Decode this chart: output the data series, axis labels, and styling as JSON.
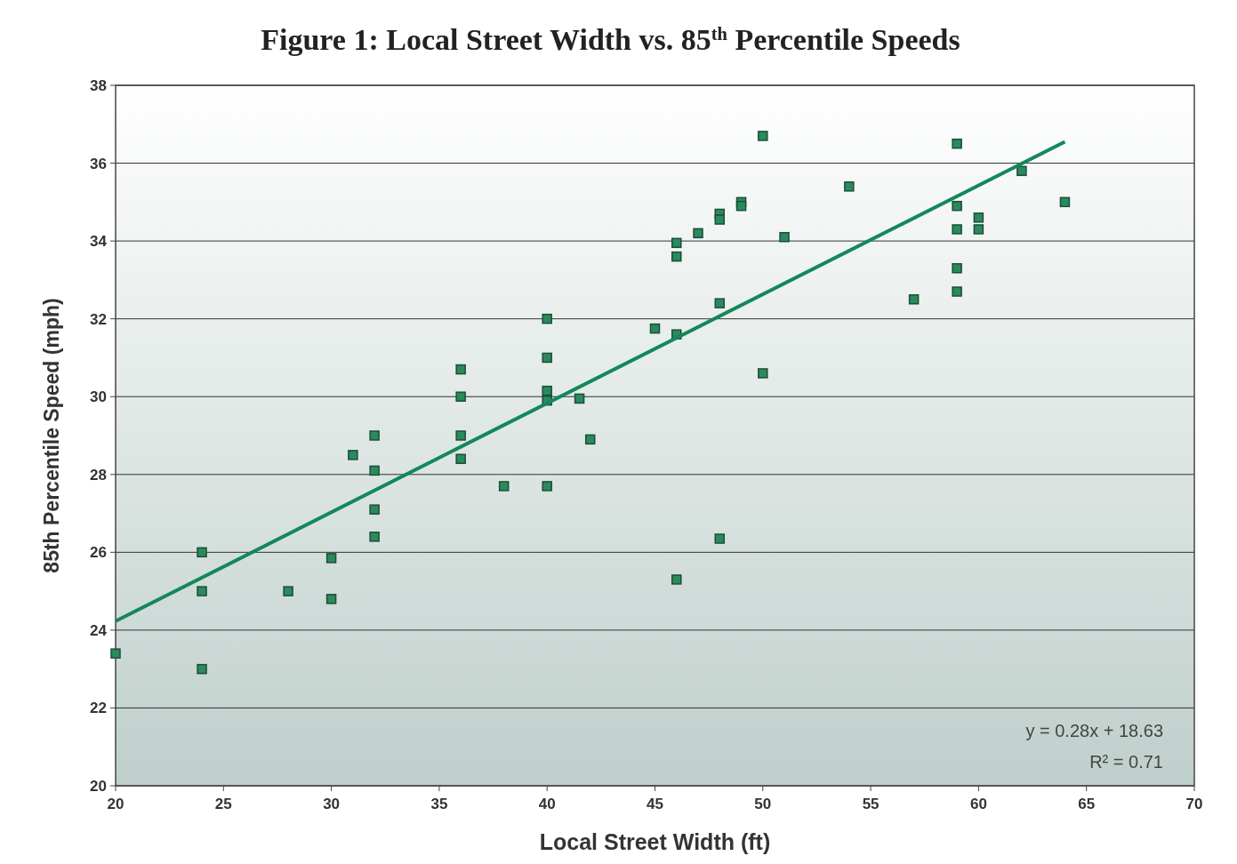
{
  "chart_data": {
    "type": "scatter",
    "title": "Figure 1: Local Street Width vs. 85$^{th}$ Percentile Speeds",
    "xlabel": "Local Street Width (ft)",
    "ylabel": "85th Percentile Speed (mph)",
    "xlim": [
      20,
      70
    ],
    "xticks": [
      20,
      25,
      30,
      35,
      40,
      45,
      50,
      55,
      60,
      65,
      70
    ],
    "ylim": [
      20,
      38
    ],
    "yticks": [
      20,
      22,
      24,
      26,
      28,
      30,
      32,
      34,
      36,
      38
    ],
    "grid": "y",
    "marker": "square",
    "annotations": [
      "y = 0.28x + 18.63",
      "R² = 0.71"
    ],
    "series": [
      {
        "color": "#2a8a5c",
        "x": [
          20,
          24,
          24,
          24,
          28,
          30,
          30,
          31,
          32,
          32,
          32,
          32,
          36,
          36,
          36,
          36,
          38,
          40,
          40,
          40,
          40,
          40,
          41.5,
          42,
          45,
          46,
          46,
          46,
          46,
          47,
          48,
          48,
          48,
          48,
          49,
          49,
          50,
          50,
          51,
          54,
          57,
          59,
          59,
          59,
          59,
          59,
          60,
          60,
          62,
          64
        ],
        "values": [
          23.4,
          26,
          25,
          23,
          25,
          25.85,
          24.8,
          28.5,
          29,
          28.1,
          27.1,
          26.4,
          30.7,
          30,
          29,
          28.4,
          27.7,
          32,
          31,
          30.15,
          29.9,
          27.7,
          29.95,
          28.9,
          31.75,
          33.95,
          33.6,
          31.6,
          25.3,
          34.2,
          34.7,
          34.55,
          32.4,
          26.35,
          35,
          34.9,
          36.7,
          30.6,
          34.1,
          35.4,
          32.5,
          36.5,
          34.9,
          34.3,
          33.3,
          32.7,
          34.6,
          34.3,
          35.8,
          35
        ]
      },
      {
        "type": "line",
        "color": "#13885a",
        "line_style": "solid",
        "marker": "none",
        "x": [
          20,
          64
        ],
        "values": [
          24.23,
          36.55
        ]
      }
    ]
  }
}
